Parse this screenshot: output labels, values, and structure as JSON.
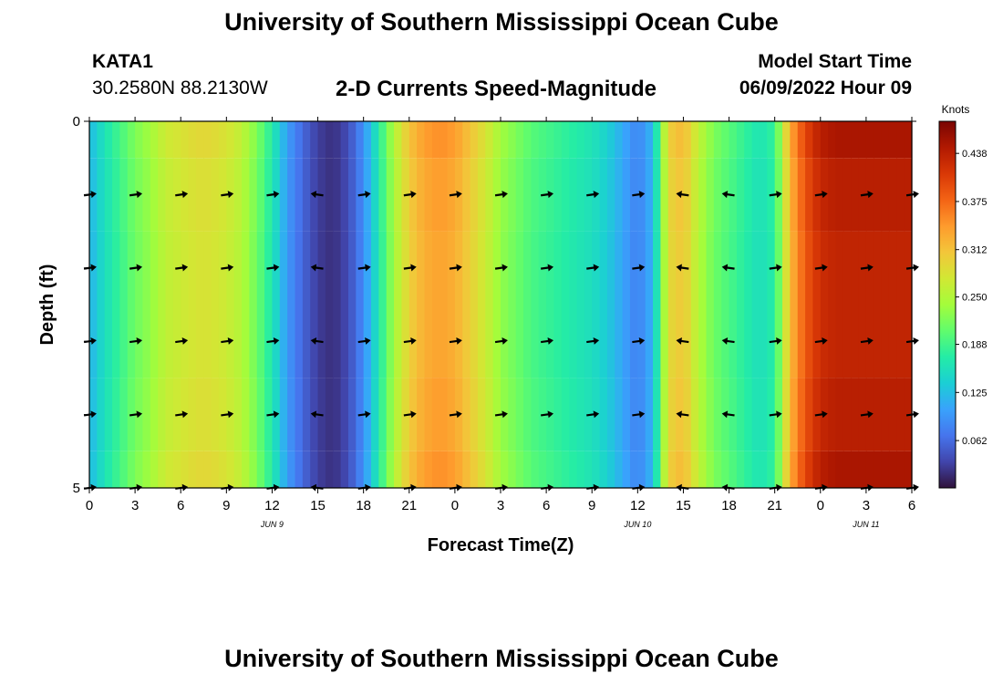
{
  "header": {
    "title": "University of Southern Mississippi Ocean Cube",
    "station_id": "KATA1",
    "station_coords": "30.2580N  88.2130W",
    "subtitle": "2-D Currents Speed-Magnitude",
    "model_label": "Model Start Time",
    "model_time": "06/09/2022 Hour 09"
  },
  "footer": {
    "title": "University of Southern Mississippi Ocean Cube"
  },
  "colors": {
    "colormap": [
      "#30123b",
      "#4145ab",
      "#4675ed",
      "#39a2fc",
      "#1bcfd4",
      "#24eca6",
      "#61fc6c",
      "#a4fc3b",
      "#d1e834",
      "#f3c63a",
      "#fe9b2d",
      "#f36315",
      "#d93806",
      "#b11901",
      "#7a0402"
    ],
    "arrow": "#000000",
    "axis": "#000000"
  },
  "chart_data": {
    "type": "heatmap",
    "title": "2-D Currents Speed-Magnitude",
    "xlabel": "Forecast Time(Z)",
    "ylabel": "Depth (ft)",
    "x_hours": [
      0,
      39
    ],
    "x_ticks": [
      {
        "hour": 0,
        "label": "0"
      },
      {
        "hour": 3,
        "label": "3"
      },
      {
        "hour": 6,
        "label": "6"
      },
      {
        "hour": 9,
        "label": "9"
      },
      {
        "hour": 12,
        "label": "12"
      },
      {
        "hour": 15,
        "label": "15"
      },
      {
        "hour": 18,
        "label": "18"
      },
      {
        "hour": 21,
        "label": "21"
      },
      {
        "hour": 24,
        "label": "0"
      },
      {
        "hour": 27,
        "label": "3"
      },
      {
        "hour": 30,
        "label": "6"
      },
      {
        "hour": 33,
        "label": "9"
      },
      {
        "hour": 36,
        "label": "12"
      },
      {
        "hour": 39,
        "label": "15"
      },
      {
        "hour": 42,
        "label": "18"
      },
      {
        "hour": 45,
        "label": "21"
      },
      {
        "hour": 48,
        "label": "0"
      },
      {
        "hour": 51,
        "label": "3"
      },
      {
        "hour": 54,
        "label": "6"
      }
    ],
    "x_range": [
      0,
      54
    ],
    "date_labels": [
      {
        "hour": 12,
        "label": "JUN 9"
      },
      {
        "hour": 36,
        "label": "JUN 10"
      },
      {
        "hour": 51,
        "label": "JUN 11"
      }
    ],
    "y_ticks": [
      {
        "depth": 0,
        "label": "0"
      },
      {
        "depth": 5,
        "label": "5"
      }
    ],
    "y_range": [
      0,
      5
    ],
    "depth_rows": [
      0,
      1,
      2,
      3,
      4,
      5
    ],
    "colorbar": {
      "label": "Knots",
      "range": [
        0.0,
        0.48
      ],
      "ticks": [
        "0.062",
        "0.125",
        "0.188",
        "0.250",
        "0.312",
        "0.375",
        "0.438"
      ]
    },
    "speed_profile": {
      "hours": [
        0,
        1,
        2,
        3,
        4,
        5,
        6,
        7,
        8,
        9,
        10,
        11,
        12,
        13,
        14,
        15,
        16,
        17,
        18,
        19,
        20,
        21,
        22,
        23,
        24,
        25,
        26,
        27,
        28,
        29,
        30,
        31,
        32,
        33,
        34,
        35,
        36,
        37,
        38,
        39,
        40,
        41,
        42,
        43,
        44,
        45,
        46,
        47,
        48,
        49,
        50,
        51,
        52,
        53,
        54
      ],
      "surface_speed_knots": [
        0.12,
        0.16,
        0.19,
        0.22,
        0.24,
        0.27,
        0.28,
        0.29,
        0.29,
        0.28,
        0.26,
        0.22,
        0.17,
        0.1,
        0.06,
        0.03,
        0.02,
        0.04,
        0.09,
        0.17,
        0.25,
        0.31,
        0.34,
        0.35,
        0.34,
        0.31,
        0.28,
        0.24,
        0.22,
        0.2,
        0.19,
        0.18,
        0.17,
        0.16,
        0.14,
        0.11,
        0.08,
        0.12,
        0.3,
        0.32,
        0.26,
        0.22,
        0.2,
        0.18,
        0.16,
        0.18,
        0.33,
        0.4,
        0.44,
        0.45,
        0.45,
        0.45,
        0.45,
        0.45,
        0.45
      ]
    },
    "arrows": {
      "hours": [
        0,
        3,
        6,
        9,
        12,
        15,
        18,
        21,
        24,
        27,
        30,
        33,
        36,
        39,
        42,
        45,
        48,
        51,
        54
      ],
      "depths": [
        1,
        2,
        3,
        4,
        5
      ],
      "direction": [
        "east",
        "east",
        "east",
        "east",
        "east",
        "west",
        "east",
        "east",
        "east",
        "east",
        "east",
        "east",
        "east",
        "west",
        "west",
        "east",
        "east",
        "east",
        "east"
      ]
    }
  }
}
